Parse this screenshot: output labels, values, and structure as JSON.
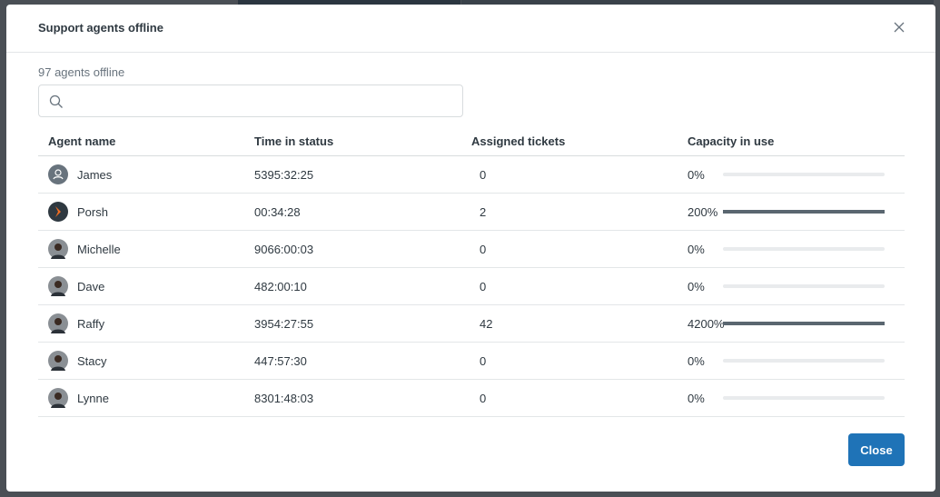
{
  "modal": {
    "title": "Support agents offline",
    "count": "97 agents offline",
    "search_placeholder": "",
    "close_label": "Close"
  },
  "table": {
    "headers": [
      "Agent name",
      "Time in status",
      "Assigned tickets",
      "Capacity in use"
    ],
    "rows": [
      {
        "name": "James",
        "time": "5395:32:25",
        "tickets": "0",
        "capacity": "0%",
        "fill": 0,
        "avatar": "default-user"
      },
      {
        "name": "Porsh",
        "time": "00:34:28",
        "tickets": "2",
        "capacity": "200%",
        "fill": 1,
        "avatar": "orange-chevron"
      },
      {
        "name": "Michelle",
        "time": "9066:00:03",
        "tickets": "0",
        "capacity": "0%",
        "fill": 0,
        "avatar": "photo"
      },
      {
        "name": "Dave",
        "time": "482:00:10",
        "tickets": "0",
        "capacity": "0%",
        "fill": 0,
        "avatar": "photo"
      },
      {
        "name": "Raffy",
        "time": "3954:27:55",
        "tickets": "42",
        "capacity": "4200%",
        "fill": 1,
        "avatar": "photo"
      },
      {
        "name": "Stacy",
        "time": "447:57:30",
        "tickets": "0",
        "capacity": "0%",
        "fill": 0,
        "avatar": "photo"
      },
      {
        "name": "Lynne",
        "time": "8301:48:03",
        "tickets": "0",
        "capacity": "0%",
        "fill": 0,
        "avatar": "photo"
      }
    ]
  },
  "colors": {
    "primary": "#1f73b7",
    "bar_fill": "#5a6670",
    "bar_track": "#e9ebed"
  }
}
